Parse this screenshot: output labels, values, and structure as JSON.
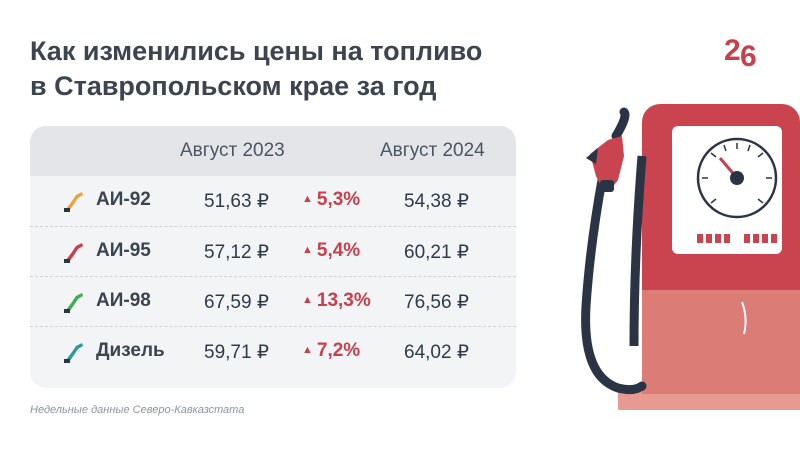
{
  "title": {
    "line1": "Как изменились цены на топливо",
    "line2": "в Ставропольском крае за год"
  },
  "logo": {
    "text": "26"
  },
  "table": {
    "headers": [
      "",
      "Август 2023",
      "",
      "Август 2024"
    ],
    "rows": [
      {
        "fuel": "АИ-92",
        "icon_color": "#f0a23a",
        "old": "51,63 ₽",
        "change": "5,3%",
        "new": "54,38 ₽"
      },
      {
        "fuel": "АИ-95",
        "icon_color": "#c9404b",
        "old": "57,12 ₽",
        "change": "5,4%",
        "new": "60,21 ₽"
      },
      {
        "fuel": "АИ-98",
        "icon_color": "#3fae4e",
        "old": "67,59 ₽",
        "change": "13,3%",
        "new": "76,56 ₽"
      },
      {
        "fuel": "Дизель",
        "icon_color": "#2a9a9a",
        "old": "59,71 ₽",
        "change": "7,2%",
        "new": "64,02 ₽"
      }
    ],
    "change_marker": "▲"
  },
  "footnote": "Недельные данные Северо-Кавказстата",
  "colors": {
    "accent_red": "#c8404b",
    "pump_body": "#c9444f",
    "pump_light": "#dc7c76",
    "hose": "#2b3444"
  }
}
